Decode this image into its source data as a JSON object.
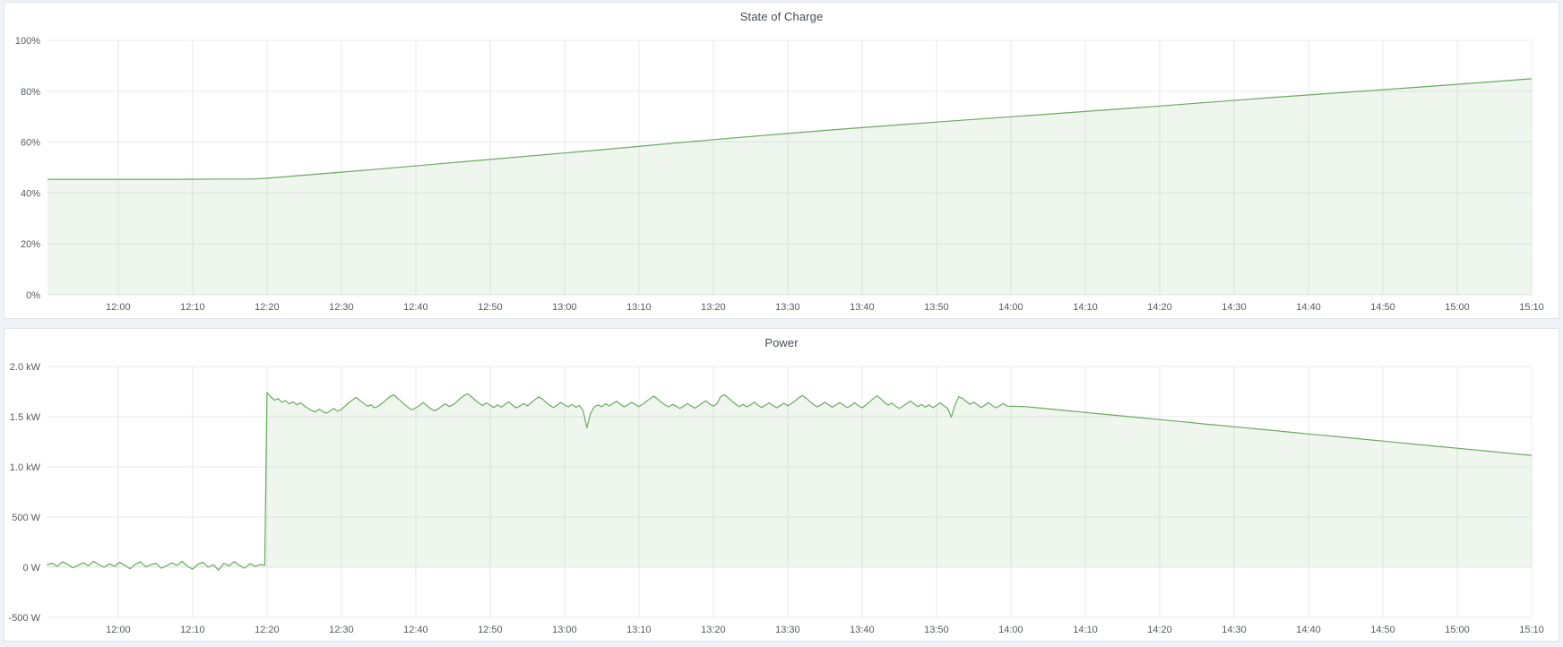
{
  "page": {
    "background": "#eff2f6",
    "panel_border": "#dfe3e8",
    "grid_color": "#e7e9ec",
    "tick_color": "#555b62",
    "title_color": "#464c54",
    "accent_green": "#6aaa60"
  },
  "panels": [
    {
      "title": "State of Charge"
    },
    {
      "title": "Power"
    }
  ],
  "chart_data": [
    {
      "type": "area",
      "title": "State of Charge",
      "x_axis": "time",
      "xlabel": "",
      "ylabel": "",
      "grid": true,
      "legend": false,
      "x_range": [
        710.5,
        910
      ],
      "y_range": [
        0,
        100
      ],
      "x_ticks": [
        {
          "v": 720,
          "label": "12:00"
        },
        {
          "v": 730,
          "label": "12:10"
        },
        {
          "v": 740,
          "label": "12:20"
        },
        {
          "v": 750,
          "label": "12:30"
        },
        {
          "v": 760,
          "label": "12:40"
        },
        {
          "v": 770,
          "label": "12:50"
        },
        {
          "v": 780,
          "label": "13:00"
        },
        {
          "v": 790,
          "label": "13:10"
        },
        {
          "v": 800,
          "label": "13:20"
        },
        {
          "v": 810,
          "label": "13:30"
        },
        {
          "v": 820,
          "label": "13:40"
        },
        {
          "v": 830,
          "label": "13:50"
        },
        {
          "v": 840,
          "label": "14:00"
        },
        {
          "v": 850,
          "label": "14:10"
        },
        {
          "v": 860,
          "label": "14:20"
        },
        {
          "v": 870,
          "label": "14:30"
        },
        {
          "v": 880,
          "label": "14:40"
        },
        {
          "v": 890,
          "label": "14:50"
        },
        {
          "v": 900,
          "label": "15:00"
        },
        {
          "v": 910,
          "label": "15:10"
        }
      ],
      "y_ticks": [
        {
          "v": 0,
          "label": "0%"
        },
        {
          "v": 20,
          "label": "20%"
        },
        {
          "v": 40,
          "label": "40%"
        },
        {
          "v": 60,
          "label": "60%"
        },
        {
          "v": 80,
          "label": "80%"
        },
        {
          "v": 100,
          "label": "100%"
        }
      ],
      "series": [
        {
          "name": "State of Charge",
          "color": "#6aaa60",
          "fill_opacity": 0.11,
          "fill_to": 0,
          "segments": [
            {
              "points": [
                [
                  710.5,
                  45.4
                ],
                [
                  720,
                  45.4
                ],
                [
                  728,
                  45.4
                ],
                [
                  734,
                  45.5
                ],
                [
                  738,
                  45.5
                ],
                [
                  740,
                  45.8
                ],
                [
                  755,
                  49.4
                ],
                [
                  770,
                  53.2
                ],
                [
                  785,
                  57.0
                ],
                [
                  800,
                  61.0
                ],
                [
                  815,
                  64.6
                ],
                [
                  830,
                  67.9
                ],
                [
                  845,
                  71.0
                ],
                [
                  860,
                  74.2
                ],
                [
                  875,
                  77.5
                ],
                [
                  890,
                  80.6
                ],
                [
                  900,
                  82.7
                ],
                [
                  910,
                  84.9
                ]
              ]
            }
          ]
        }
      ]
    },
    {
      "type": "area",
      "title": "Power",
      "x_axis": "time",
      "xlabel": "",
      "ylabel": "",
      "grid": true,
      "legend": false,
      "x_range": [
        710.5,
        910
      ],
      "y_range": [
        -500,
        2000
      ],
      "x_ticks": [
        {
          "v": 720,
          "label": "12:00"
        },
        {
          "v": 730,
          "label": "12:10"
        },
        {
          "v": 740,
          "label": "12:20"
        },
        {
          "v": 750,
          "label": "12:30"
        },
        {
          "v": 760,
          "label": "12:40"
        },
        {
          "v": 770,
          "label": "12:50"
        },
        {
          "v": 780,
          "label": "13:00"
        },
        {
          "v": 790,
          "label": "13:10"
        },
        {
          "v": 800,
          "label": "13:20"
        },
        {
          "v": 810,
          "label": "13:30"
        },
        {
          "v": 820,
          "label": "13:40"
        },
        {
          "v": 830,
          "label": "13:50"
        },
        {
          "v": 840,
          "label": "14:00"
        },
        {
          "v": 850,
          "label": "14:10"
        },
        {
          "v": 860,
          "label": "14:20"
        },
        {
          "v": 870,
          "label": "14:30"
        },
        {
          "v": 880,
          "label": "14:40"
        },
        {
          "v": 890,
          "label": "14:50"
        },
        {
          "v": 900,
          "label": "15:00"
        },
        {
          "v": 910,
          "label": "15:10"
        }
      ],
      "y_ticks": [
        {
          "v": -500,
          "label": "-500 W"
        },
        {
          "v": 0,
          "label": "0 W"
        },
        {
          "v": 500,
          "label": "500 W"
        },
        {
          "v": 1000,
          "label": "1.0 kW"
        },
        {
          "v": 1500,
          "label": "1.5 kW"
        },
        {
          "v": 2000,
          "label": "2.0 kW"
        }
      ],
      "series": [
        {
          "name": "Power",
          "color": "#6aaa60",
          "fill_opacity": 0.11,
          "fill_to": 0,
          "segments": [
            {
              "t0": 710.4,
              "dt": 0.7,
              "values": [
                25,
                40,
                10,
                55,
                30,
                -5,
                20,
                45,
                15,
                60,
                25,
                0,
                35,
                10,
                50,
                20,
                -15,
                30,
                55,
                5,
                25,
                40,
                -10,
                15,
                45,
                20,
                60,
                10,
                -20,
                30,
                50,
                0,
                25,
                -30,
                40,
                15,
                55,
                20,
                -10,
                35,
                10,
                28
              ]
            },
            {
              "t0": 739.7,
              "dt": 0.3,
              "values": [
                20,
                1740
              ]
            },
            {
              "t0": 740.5,
              "dt": 0.5,
              "values": [
                1700,
                1665,
                1680,
                1645,
                1660,
                1628,
                1648,
                1618,
                1638,
                1610,
                1585,
                1562,
                1548,
                1575,
                1552,
                1535,
                1558,
                1582,
                1555,
                1572,
                1605,
                1638,
                1668,
                1692,
                1662,
                1632,
                1605,
                1618,
                1588,
                1608,
                1635,
                1668,
                1698,
                1718,
                1688,
                1655,
                1622,
                1592,
                1568,
                1588,
                1612,
                1642,
                1612,
                1582,
                1558,
                1578,
                1605,
                1628,
                1602,
                1618,
                1648,
                1682,
                1712,
                1728,
                1698,
                1665,
                1635,
                1612,
                1638,
                1615,
                1592,
                1618,
                1595,
                1622,
                1648,
                1615,
                1588,
                1605,
                1632,
                1608,
                1638,
                1668,
                1698,
                1678,
                1645,
                1615,
                1592,
                1615,
                1642,
                1618,
                1598,
                1622,
                1595,
                1612,
                1562,
                1390,
                1535,
                1598,
                1618,
                1600,
                1628,
                1608,
                1632,
                1655,
                1625,
                1598,
                1618,
                1645,
                1622,
                1600,
                1625,
                1652,
                1680,
                1705,
                1675,
                1645,
                1618,
                1598,
                1622,
                1605,
                1582,
                1605,
                1632,
                1610,
                1585,
                1608,
                1635,
                1658,
                1628,
                1605,
                1630,
                1702,
                1718,
                1688,
                1655,
                1625,
                1600,
                1622,
                1598,
                1618,
                1645,
                1615,
                1592,
                1615,
                1638,
                1612,
                1588,
                1610,
                1635,
                1608,
                1632,
                1658,
                1688,
                1712,
                1682,
                1650,
                1620,
                1598,
                1620,
                1645,
                1618,
                1595,
                1618,
                1642,
                1615,
                1590,
                1612,
                1638,
                1610,
                1588,
                1615,
                1648,
                1680,
                1708,
                1678,
                1645,
                1615,
                1635,
                1605,
                1582,
                1605,
                1630,
                1655,
                1628,
                1600,
                1622,
                1595,
                1618,
                1590,
                1612,
                1638,
                1610,
                1585,
                1495,
                1620,
                1700,
                1682,
                1652,
                1622,
                1645,
                1618,
                1592,
                1615,
                1640,
                1612,
                1588,
                1610,
                1632,
                1605
              ]
            },
            {
              "t0": 842,
              "dt": 2,
              "values": [
                1600,
                1586,
                1571,
                1557,
                1543,
                1528,
                1514,
                1500,
                1486,
                1471,
                1457,
                1443,
                1428,
                1414,
                1400,
                1386,
                1371,
                1357,
                1343,
                1328,
                1314,
                1300,
                1286,
                1271,
                1257,
                1243,
                1228,
                1214,
                1200,
                1186,
                1171,
                1157,
                1143,
                1128,
                1115
              ]
            }
          ]
        }
      ]
    }
  ]
}
